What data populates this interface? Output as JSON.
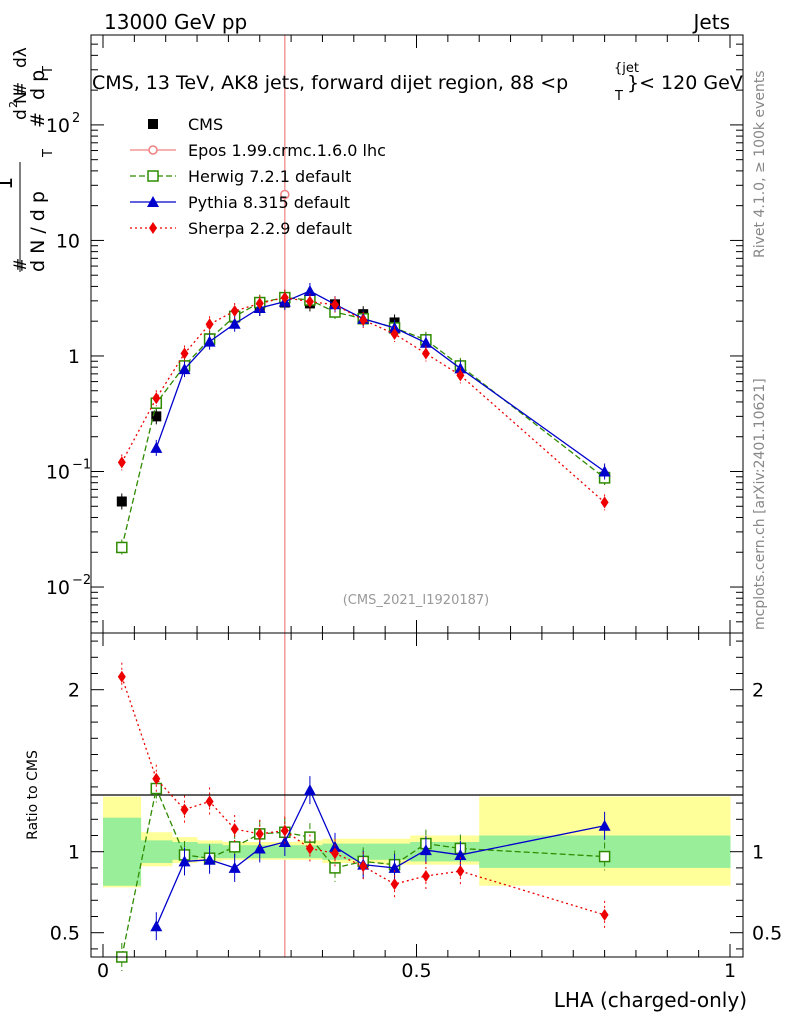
{
  "header": {
    "left": "13000 GeV pp",
    "right": "Jets"
  },
  "side_labels": {
    "rivet": "Rivet 4.1.0, ≥ 100k events",
    "mcplots": "mcplots.cern.ch [arXiv:2401.10621]"
  },
  "watermark": "(CMS_2021_I1920187)",
  "chart_data": {
    "type": "line",
    "title": "CMS, 13 TeV, AK8 jets, forward dijet region, 88 <p_T^{jet}< 120 GeV",
    "title_main": "CMS, 13 TeV, AK8 jets, forward dijet region, 88 <p",
    "title_sup": "{jet",
    "title_sub": "T",
    "title_tail": "}< 120 GeV",
    "xlabel": "LHA (charged-only)",
    "ylabel": "1/N dN/dp_T dλ · d²N/dp_T dλ",
    "ylabel_parts": {
      "one": "1",
      "hash1": "#",
      "dN": "d N / d p",
      "dN_sub": "T",
      "hash2": "#",
      "dp": "d p",
      "dp_sub": "T",
      "dl": "dλ",
      "hash3": "#",
      "d2N": "d",
      "d2N_sup": "2",
      "d2N_n": "N",
      "hash4": "#"
    },
    "xlim": [
      0,
      1
    ],
    "ylim_main": [
      0.004,
      600
    ],
    "ylim_ratio": [
      0.35,
      2.35
    ],
    "x_ticks": [
      "0",
      "0.5",
      "1"
    ],
    "y_ticks_main": [
      {
        "value": 0.01,
        "base": "10",
        "exp": "−2"
      },
      {
        "value": 0.1,
        "base": "10",
        "exp": "−1"
      },
      {
        "value": 1,
        "base": "1",
        "exp": ""
      },
      {
        "value": 10,
        "base": "10",
        "exp": ""
      },
      {
        "value": 100,
        "base": "10",
        "exp": "2"
      }
    ],
    "y_ticks_ratio": [
      "0.5",
      "1",
      "2"
    ],
    "ratio_ylabel": "Ratio to CMS",
    "bin_edges": [
      0,
      0.06,
      0.11,
      0.15,
      0.19,
      0.23,
      0.27,
      0.31,
      0.35,
      0.39,
      0.44,
      0.49,
      0.54,
      0.6,
      1.0
    ],
    "band_green": [
      [
        0.79,
        1.21
      ],
      [
        0.93,
        1.07
      ],
      [
        0.95,
        1.06
      ],
      [
        0.96,
        1.05
      ],
      [
        0.96,
        1.04
      ],
      [
        0.96,
        1.04
      ],
      [
        0.96,
        1.04
      ],
      [
        0.96,
        1.04
      ],
      [
        0.95,
        1.05
      ],
      [
        0.95,
        1.05
      ],
      [
        0.95,
        1.05
      ],
      [
        0.94,
        1.06
      ],
      [
        0.94,
        1.06
      ],
      [
        0.9,
        1.1
      ]
    ],
    "band_yellow": [
      [
        0.78,
        1.34
      ],
      [
        0.91,
        1.12
      ],
      [
        0.93,
        1.09
      ],
      [
        0.94,
        1.07
      ],
      [
        0.95,
        1.06
      ],
      [
        0.95,
        1.06
      ],
      [
        0.95,
        1.06
      ],
      [
        0.95,
        1.07
      ],
      [
        0.93,
        1.08
      ],
      [
        0.93,
        1.08
      ],
      [
        0.92,
        1.08
      ],
      [
        0.92,
        1.1
      ],
      [
        0.92,
        1.1
      ],
      [
        0.79,
        1.34
      ]
    ],
    "legend": [
      {
        "name": "CMS",
        "color": "#000000",
        "marker": "square",
        "dash": ""
      },
      {
        "name": "Epos 1.99.crmc.1.6.0 lhc",
        "color": "#f08080",
        "marker": "open-circle",
        "dash": ""
      },
      {
        "name": "Herwig 7.2.1 default",
        "color": "#2e8b00",
        "marker": "open-square",
        "dash": "6,3"
      },
      {
        "name": "Pythia 8.315 default",
        "color": "#0000cc",
        "marker": "triangle",
        "dash": ""
      },
      {
        "name": "Sherpa 2.2.9 default",
        "color": "#ee0000",
        "marker": "diamond",
        "dash": "2,3"
      }
    ],
    "series": [
      {
        "name": "CMS",
        "x": [
          0.03,
          0.085,
          0.13,
          0.17,
          0.21,
          0.25,
          0.29,
          0.33,
          0.37,
          0.415,
          0.465,
          0.515,
          0.57,
          0.8
        ],
        "values": [
          0.055,
          0.3,
          0.82,
          1.42,
          2.15,
          2.6,
          2.9,
          2.85,
          2.8,
          2.3,
          1.95,
          1.35,
          0.8,
          0.09
        ]
      },
      {
        "name": "Epos 1.99.crmc.1.6.0 lhc",
        "x": [
          0.29
        ],
        "values": [
          25
        ]
      },
      {
        "name": "Herwig 7.2.1 default",
        "x": [
          0.03,
          0.085,
          0.13,
          0.17,
          0.21,
          0.25,
          0.29,
          0.33,
          0.37,
          0.415,
          0.465,
          0.515,
          0.57,
          0.8
        ],
        "values": [
          0.022,
          0.39,
          0.82,
          1.4,
          2.2,
          2.9,
          3.2,
          3.05,
          2.4,
          2.1,
          1.75,
          1.38,
          0.82,
          0.088
        ],
        "ratio": [
          0.35,
          1.39,
          0.98,
          0.96,
          1.03,
          1.11,
          1.12,
          1.09,
          0.9,
          0.94,
          0.92,
          1.05,
          1.02,
          0.97
        ]
      },
      {
        "name": "Pythia 8.315 default",
        "x": [
          0.085,
          0.13,
          0.17,
          0.21,
          0.25,
          0.29,
          0.33,
          0.37,
          0.415,
          0.465,
          0.515,
          0.57,
          0.8
        ],
        "values": [
          0.16,
          0.77,
          1.33,
          1.9,
          2.6,
          2.95,
          3.65,
          2.8,
          2.1,
          1.75,
          1.3,
          0.78,
          0.1
        ],
        "ratio": [
          0.54,
          0.94,
          0.95,
          0.9,
          1.02,
          1.06,
          1.38,
          1.03,
          0.92,
          0.9,
          1.01,
          0.98,
          1.16
        ]
      },
      {
        "name": "Sherpa 2.2.9 default",
        "x": [
          0.03,
          0.085,
          0.13,
          0.17,
          0.21,
          0.25,
          0.29,
          0.33,
          0.37,
          0.415,
          0.465,
          0.515,
          0.57,
          0.8
        ],
        "values": [
          0.12,
          0.43,
          1.05,
          1.88,
          2.45,
          2.85,
          3.2,
          2.95,
          2.78,
          2.05,
          1.55,
          1.05,
          0.68,
          0.054
        ],
        "ratio": [
          2.08,
          1.45,
          1.26,
          1.31,
          1.14,
          1.11,
          1.13,
          1.02,
          0.99,
          0.91,
          0.8,
          0.85,
          0.88,
          0.61
        ]
      }
    ]
  }
}
